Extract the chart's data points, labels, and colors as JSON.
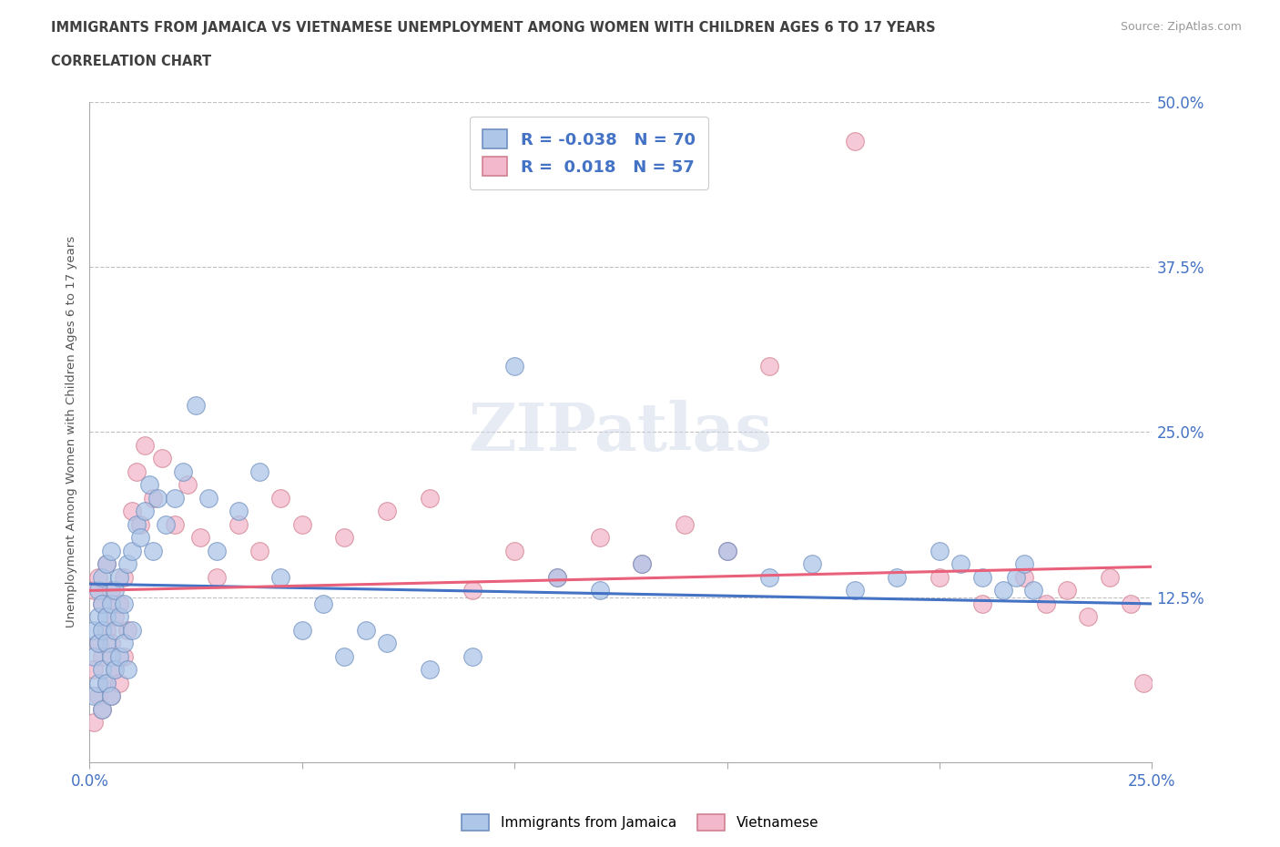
{
  "title_line1": "IMMIGRANTS FROM JAMAICA VS VIETNAMESE UNEMPLOYMENT AMONG WOMEN WITH CHILDREN AGES 6 TO 17 YEARS",
  "title_line2": "CORRELATION CHART",
  "source_text": "Source: ZipAtlas.com",
  "ylabel": "Unemployment Among Women with Children Ages 6 to 17 years",
  "xlim": [
    0.0,
    0.25
  ],
  "ylim": [
    0.0,
    0.5
  ],
  "xticks": [
    0.0,
    0.05,
    0.1,
    0.15,
    0.2,
    0.25
  ],
  "xticklabels": [
    "0.0%",
    "",
    "",
    "",
    "",
    "25.0%"
  ],
  "yticks": [
    0.0,
    0.125,
    0.25,
    0.375,
    0.5
  ],
  "yticklabels_right": [
    "",
    "12.5%",
    "25.0%",
    "37.5%",
    "50.0%"
  ],
  "legend_jamaica": "Immigrants from Jamaica",
  "legend_vietnamese": "Vietnamese",
  "r_jamaica": "-0.038",
  "n_jamaica": "70",
  "r_vietnamese": "0.018",
  "n_vietnamese": "57",
  "color_jamaica": "#aec6e8",
  "color_vietnamese": "#f4b8cc",
  "color_trendline_jamaica": "#4472c4",
  "color_trendline_vietnamese": "#e8607a",
  "color_axis_label": "#4472c4",
  "color_grid": "#c0c0c0",
  "color_title": "#404040",
  "watermark_text": "ZIPatlas",
  "jamaica_x": [
    0.001,
    0.001,
    0.001,
    0.002,
    0.002,
    0.002,
    0.002,
    0.003,
    0.003,
    0.003,
    0.003,
    0.003,
    0.004,
    0.004,
    0.004,
    0.004,
    0.005,
    0.005,
    0.005,
    0.005,
    0.006,
    0.006,
    0.006,
    0.007,
    0.007,
    0.007,
    0.008,
    0.008,
    0.009,
    0.009,
    0.01,
    0.01,
    0.011,
    0.012,
    0.013,
    0.014,
    0.015,
    0.016,
    0.018,
    0.02,
    0.022,
    0.025,
    0.028,
    0.03,
    0.035,
    0.04,
    0.045,
    0.05,
    0.055,
    0.06,
    0.065,
    0.07,
    0.08,
    0.09,
    0.1,
    0.11,
    0.12,
    0.13,
    0.15,
    0.16,
    0.17,
    0.18,
    0.19,
    0.2,
    0.205,
    0.21,
    0.215,
    0.218,
    0.22,
    0.222
  ],
  "jamaica_y": [
    0.05,
    0.08,
    0.1,
    0.06,
    0.09,
    0.11,
    0.13,
    0.04,
    0.07,
    0.1,
    0.12,
    0.14,
    0.06,
    0.09,
    0.11,
    0.15,
    0.05,
    0.08,
    0.12,
    0.16,
    0.07,
    0.1,
    0.13,
    0.08,
    0.11,
    0.14,
    0.09,
    0.12,
    0.07,
    0.15,
    0.1,
    0.16,
    0.18,
    0.17,
    0.19,
    0.21,
    0.16,
    0.2,
    0.18,
    0.2,
    0.22,
    0.27,
    0.2,
    0.16,
    0.19,
    0.22,
    0.14,
    0.1,
    0.12,
    0.08,
    0.1,
    0.09,
    0.07,
    0.08,
    0.3,
    0.14,
    0.13,
    0.15,
    0.16,
    0.14,
    0.15,
    0.13,
    0.14,
    0.16,
    0.15,
    0.14,
    0.13,
    0.14,
    0.15,
    0.13
  ],
  "vietnamese_x": [
    0.001,
    0.001,
    0.001,
    0.002,
    0.002,
    0.002,
    0.003,
    0.003,
    0.003,
    0.004,
    0.004,
    0.004,
    0.005,
    0.005,
    0.005,
    0.006,
    0.006,
    0.007,
    0.007,
    0.008,
    0.008,
    0.009,
    0.01,
    0.011,
    0.012,
    0.013,
    0.015,
    0.017,
    0.02,
    0.023,
    0.026,
    0.03,
    0.035,
    0.04,
    0.045,
    0.05,
    0.06,
    0.07,
    0.08,
    0.09,
    0.1,
    0.11,
    0.12,
    0.13,
    0.14,
    0.15,
    0.16,
    0.18,
    0.2,
    0.21,
    0.22,
    0.225,
    0.23,
    0.235,
    0.24,
    0.245,
    0.248
  ],
  "vietnamese_y": [
    0.03,
    0.07,
    0.13,
    0.05,
    0.09,
    0.14,
    0.04,
    0.08,
    0.12,
    0.06,
    0.1,
    0.15,
    0.05,
    0.09,
    0.13,
    0.07,
    0.11,
    0.06,
    0.12,
    0.08,
    0.14,
    0.1,
    0.19,
    0.22,
    0.18,
    0.24,
    0.2,
    0.23,
    0.18,
    0.21,
    0.17,
    0.14,
    0.18,
    0.16,
    0.2,
    0.18,
    0.17,
    0.19,
    0.2,
    0.13,
    0.16,
    0.14,
    0.17,
    0.15,
    0.18,
    0.16,
    0.3,
    0.47,
    0.14,
    0.12,
    0.14,
    0.12,
    0.13,
    0.11,
    0.14,
    0.12,
    0.06
  ]
}
